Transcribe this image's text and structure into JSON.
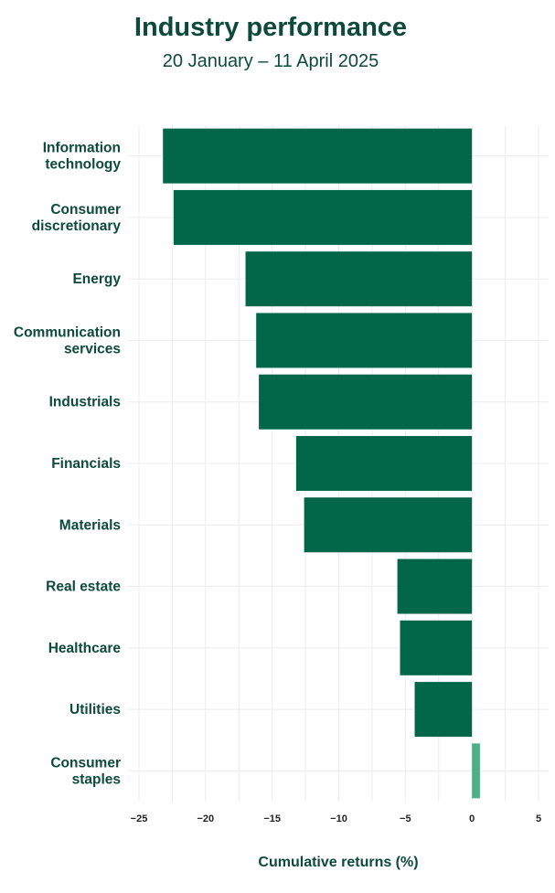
{
  "chart_data": {
    "type": "bar",
    "orientation": "horizontal",
    "title": "Industry performance",
    "subtitle": "20 January – 11 April 2025",
    "xlabel": "Cumulative returns (%)",
    "ylabel": "",
    "xlim": [
      -25,
      5
    ],
    "xticks": [
      -25,
      -20,
      -15,
      -10,
      -5,
      0,
      5
    ],
    "xtick_labels": [
      "−25",
      "−20",
      "−15",
      "−10",
      "−5",
      "0",
      "5"
    ],
    "grid": true,
    "categories": [
      [
        "Information",
        "technology"
      ],
      [
        "Consumer",
        "discretionary"
      ],
      [
        "Energy"
      ],
      [
        "Communication",
        "services"
      ],
      [
        "Industrials"
      ],
      [
        "Financials"
      ],
      [
        "Materials"
      ],
      [
        "Real estate"
      ],
      [
        "Healthcare"
      ],
      [
        "Utilities"
      ],
      [
        "Consumer",
        "staples"
      ]
    ],
    "values": [
      -23.2,
      -22.4,
      -17.0,
      -16.2,
      -16.0,
      -13.2,
      -12.6,
      -5.6,
      -5.4,
      -4.3,
      0.6
    ],
    "colors": {
      "negative": "#026649",
      "positive": "#4fae86"
    }
  }
}
